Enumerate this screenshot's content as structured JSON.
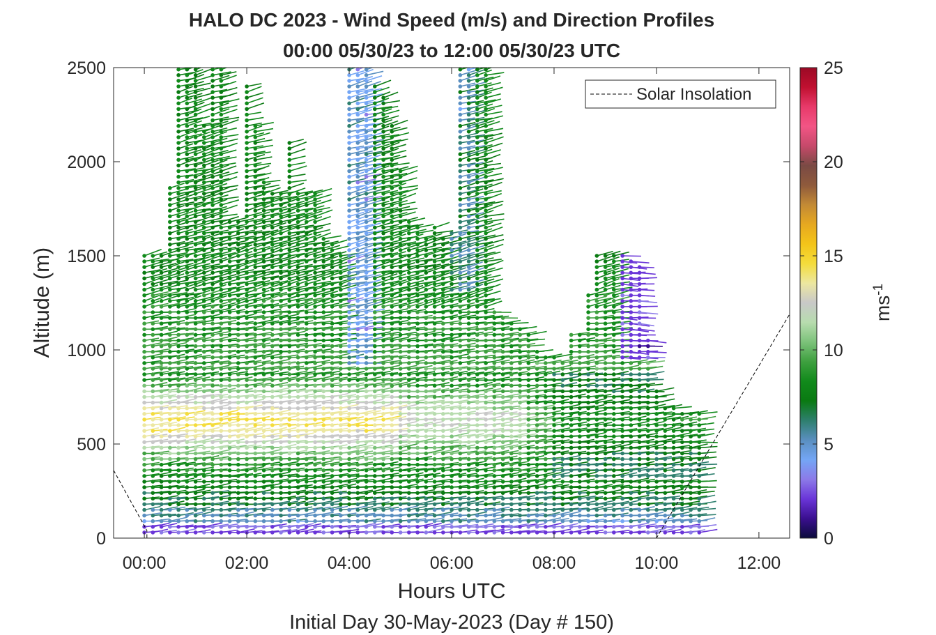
{
  "chart_data": {
    "type": "scatter",
    "title": "HALO DC 2023 - Wind Speed (m/s) and Direction Profiles",
    "subtitle": "00:00 05/30/23 to 12:00 05/30/23  UTC",
    "xlabel": "Hours UTC",
    "xlabel2": "Initial Day 30-May-2023 (Day # 150)",
    "ylabel": "Altitude (m)",
    "xlim": [
      -0.6,
      12.6
    ],
    "ylim": [
      0,
      2500
    ],
    "x_ticks": [
      0,
      2,
      4,
      6,
      8,
      10,
      12
    ],
    "x_tick_labels": [
      "00:00",
      "02:00",
      "04:00",
      "06:00",
      "08:00",
      "10:00",
      "12:00"
    ],
    "y_ticks": [
      0,
      500,
      1000,
      1500,
      2000,
      2500
    ],
    "y_tick_labels": [
      "0",
      "500",
      "1000",
      "1500",
      "2000",
      "2500"
    ],
    "legend": {
      "entries": [
        "Solar Insolation"
      ],
      "placement": "top-right"
    },
    "colorbar": {
      "label": "ms",
      "label_sup": "-1",
      "range": [
        0,
        25
      ],
      "ticks": [
        0,
        5,
        10,
        15,
        20,
        25
      ],
      "tick_labels": [
        "0",
        "5",
        "10",
        "15",
        "20",
        "25"
      ],
      "colors": [
        "#0b0b3b",
        "#3a0f8f",
        "#6a35d8",
        "#8c7ae8",
        "#74a6f5",
        "#5a8fc0",
        "#2e7f6e",
        "#0a7a12",
        "#118a1b",
        "#3ea03f",
        "#7cc27a",
        "#b7dcae",
        "#c8c8c8",
        "#ece7a0",
        "#f4dc3c",
        "#f3c419",
        "#e6a820",
        "#c38a35",
        "#8f5a3c",
        "#7a4a44",
        "#c6496a",
        "#f25585",
        "#e83a6a",
        "#c01030",
        "#9b0a25"
      ]
    },
    "grid": false,
    "time_step_hours": 0.1667,
    "altitude_step_m": 30,
    "profile_top_m": [
      1500,
      1500,
      1500,
      1870,
      2500,
      2500,
      2500,
      2200,
      2500,
      2500,
      1700,
      1700,
      2400,
      2200,
      1900,
      1850,
      1850,
      2100,
      1850,
      1850,
      1850,
      1600,
      1580,
      1500,
      2500,
      2500,
      2500,
      2400,
      2350,
      2200,
      1950,
      1700,
      1650,
      1600,
      1650,
      1600,
      1620,
      2500,
      2500,
      2500,
      2500,
      1200,
      1180,
      1150,
      1120,
      1100,
      1000,
      980,
      960,
      940,
      1100,
      1100,
      1300,
      1500,
      1500,
      1500,
      1500,
      1480,
      1460,
      1050,
      800,
      700,
      690,
      680,
      670,
      660
    ],
    "solar_insolation": {
      "description": "dashed",
      "x": [
        -0.6,
        0.05,
        0.05,
        10.0,
        10.0,
        12.6
      ],
      "y": [
        360,
        40,
        0,
        0,
        0,
        1190
      ]
    }
  }
}
